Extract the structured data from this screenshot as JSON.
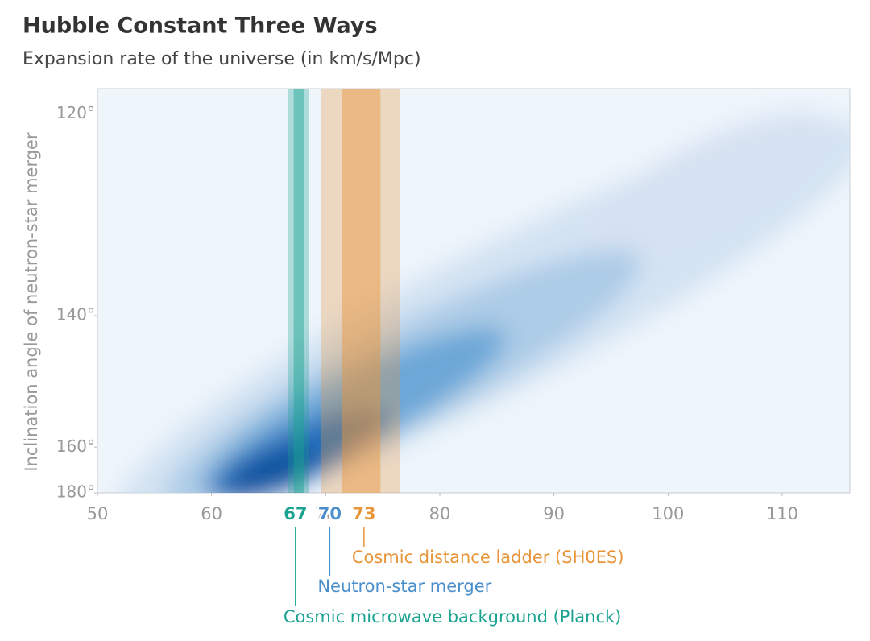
{
  "chart_data": {
    "type": "band",
    "title": "Hubble Constant Three Ways",
    "subtitle": "Expansion rate of the universe (in km/s/Mpc)",
    "y_label": "Inclination angle of neutron-star merger",
    "xlim": [
      50,
      116
    ],
    "xticks": [
      50,
      60,
      70,
      80,
      90,
      100,
      110
    ],
    "ylim": [
      117.8,
      180
    ],
    "yscale": "cosine",
    "yticks": [
      {
        "value": 120,
        "label": "120°"
      },
      {
        "value": 140,
        "label": "140°"
      },
      {
        "value": 160,
        "label": "160°"
      },
      {
        "value": 180,
        "label": "180°"
      }
    ],
    "series": [
      {
        "name": "Cosmic microwave background (Planck)",
        "color": "#1aa391",
        "value": 67,
        "band": [
          66.7,
          68.5
        ],
        "core": [
          67.2,
          68.1
        ]
      },
      {
        "name": "Neutron-star merger",
        "color": "#4a8fcb",
        "value": 70
      },
      {
        "name": "Cosmic distance ladder (SH0ES)",
        "color": "#e8953a",
        "value": 73,
        "band": [
          69.6,
          76.5
        ],
        "core": [
          71.4,
          74.8
        ]
      }
    ]
  }
}
